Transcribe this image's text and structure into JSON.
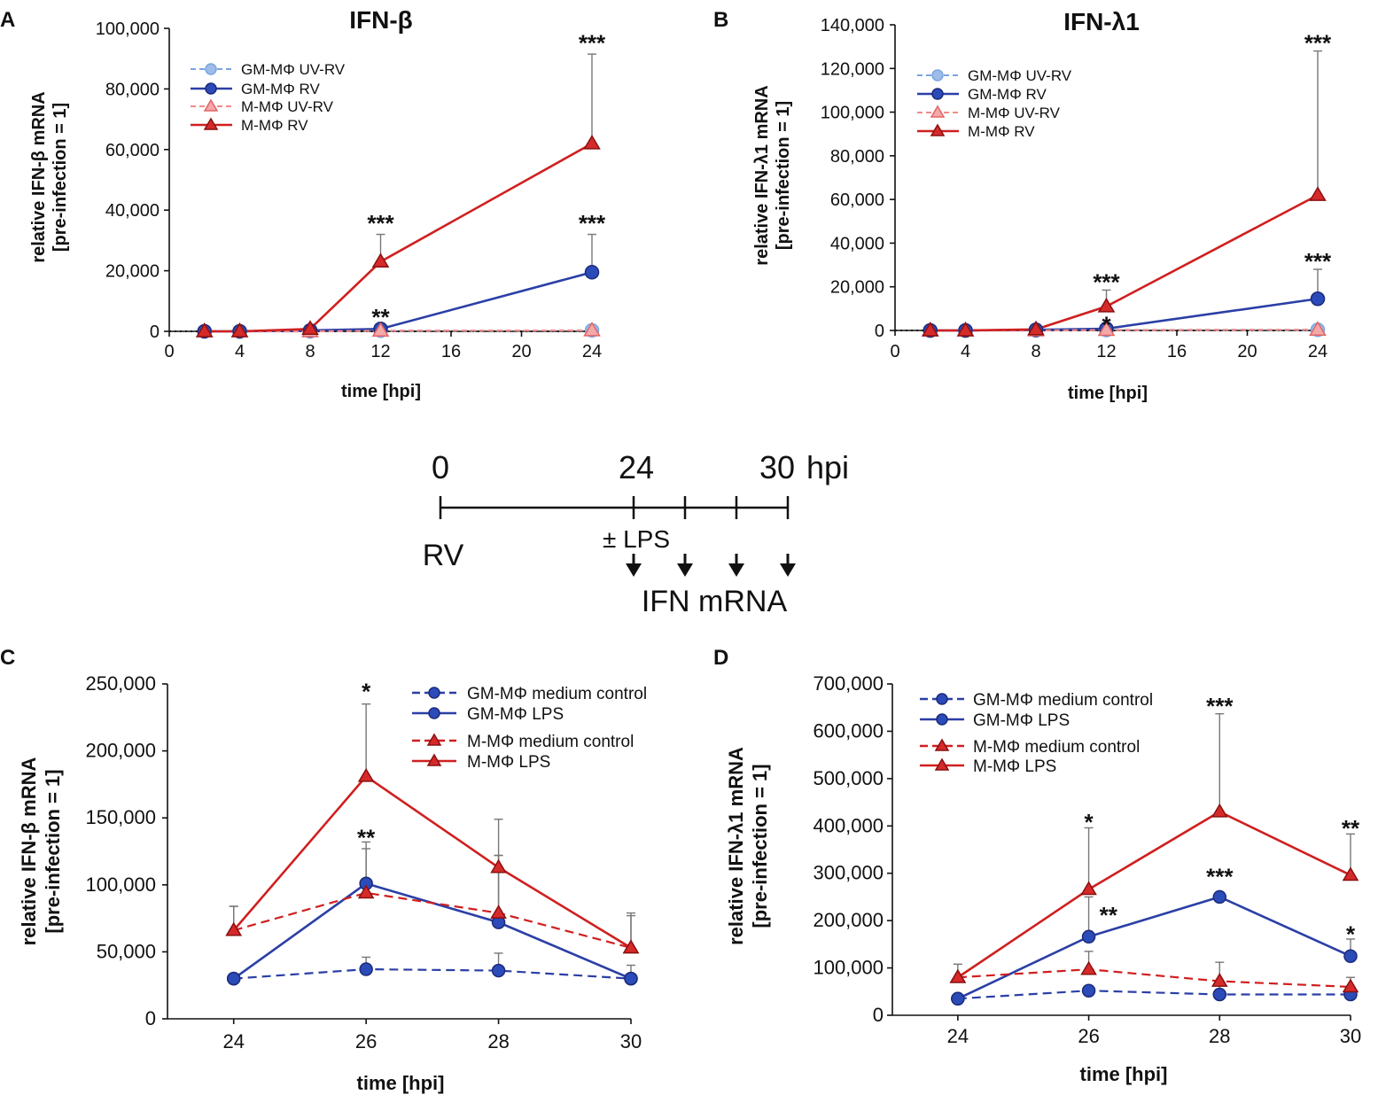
{
  "colors": {
    "gm_uv": "#7aa5e3",
    "gm_rv": "#2b3fa6",
    "m_uv": "#f28a8a",
    "m_rv": "#d01f1f",
    "axis": "#111111",
    "error_bar": "#777777",
    "dotted_baseline": "#111111"
  },
  "timeline": {
    "ticks": [
      "0",
      "24",
      "30"
    ],
    "unit": "hpi",
    "start_label": "RV",
    "treatment_label": "± LPS",
    "readout_label": "IFN mRNA",
    "timepoints": [
      0,
      24,
      26,
      28,
      30
    ],
    "sampling_times": [
      24,
      26,
      28,
      30
    ]
  },
  "chart_data": [
    {
      "id": "A",
      "panel_label": "A",
      "type": "line",
      "title": "IFN-β",
      "xlabel": "time [hpi]",
      "ylabel": [
        "relative IFN-β mRNA",
        "[pre-infection = 1]"
      ],
      "xlim": [
        0,
        24
      ],
      "ylim": [
        0,
        100000
      ],
      "xticks": [
        0,
        4,
        8,
        12,
        16,
        20,
        24
      ],
      "xtick_labels": [
        "0",
        "4",
        "8",
        "12",
        "16",
        "20",
        "24"
      ],
      "yticks": [
        0,
        20000,
        40000,
        60000,
        80000,
        100000
      ],
      "ytick_labels": [
        "0",
        "20,000",
        "40,000",
        "60,000",
        "80,000",
        "100,000"
      ],
      "x": [
        2,
        4,
        8,
        12,
        24
      ],
      "series": [
        {
          "name": "GM-MΦ UV-RV",
          "color": "gm_uv",
          "marker": "circle",
          "dash": "dashed",
          "fill": "light",
          "values": [
            0,
            0,
            0,
            200,
            300
          ],
          "err": [
            0,
            0,
            0,
            0,
            0
          ]
        },
        {
          "name": "GM-MΦ RV",
          "color": "gm_rv",
          "marker": "circle",
          "dash": "solid",
          "fill": "solid",
          "values": [
            0,
            0,
            300,
            800,
            19500
          ],
          "err": [
            0,
            0,
            0,
            0,
            12500
          ]
        },
        {
          "name": "M-MΦ UV-RV",
          "color": "m_uv",
          "marker": "triangle",
          "dash": "dashed",
          "fill": "light",
          "values": [
            0,
            0,
            0,
            200,
            300
          ],
          "err": [
            0,
            0,
            0,
            0,
            0
          ]
        },
        {
          "name": "M-MΦ RV",
          "color": "m_rv",
          "marker": "triangle",
          "dash": "solid",
          "fill": "solid",
          "values": [
            0,
            0,
            800,
            23000,
            62000
          ],
          "err": [
            0,
            0,
            0,
            9000,
            29500
          ]
        }
      ],
      "annotations": [
        {
          "text": "***",
          "x": 12,
          "y": 36000
        },
        {
          "text": "**",
          "x": 12,
          "y": 5000
        },
        {
          "text": "***",
          "x": 24,
          "y": 95500
        },
        {
          "text": "***",
          "x": 24,
          "y": 36000
        }
      ],
      "legend_position": "top-left"
    },
    {
      "id": "B",
      "panel_label": "B",
      "type": "line",
      "title": "IFN-λ1",
      "xlabel": "time [hpi]",
      "ylabel": [
        "relative IFN-λ1 mRNA",
        "[pre-infection = 1]"
      ],
      "xlim": [
        0,
        24
      ],
      "ylim": [
        0,
        140000
      ],
      "xticks": [
        0,
        4,
        8,
        12,
        16,
        20,
        24
      ],
      "xtick_labels": [
        "0",
        "4",
        "8",
        "12",
        "16",
        "20",
        "24"
      ],
      "yticks": [
        0,
        20000,
        40000,
        60000,
        80000,
        100000,
        120000,
        140000
      ],
      "ytick_labels": [
        "0",
        "20,000",
        "40,000",
        "60,000",
        "80,000",
        "100,000",
        "120,000",
        "140,000"
      ],
      "x": [
        2,
        4,
        8,
        12,
        24
      ],
      "series": [
        {
          "name": "GM-MΦ UV-RV",
          "color": "gm_uv",
          "marker": "circle",
          "dash": "dashed",
          "fill": "light",
          "values": [
            0,
            0,
            0,
            200,
            300
          ],
          "err": [
            0,
            0,
            0,
            0,
            0
          ]
        },
        {
          "name": "GM-MΦ RV",
          "color": "gm_rv",
          "marker": "circle",
          "dash": "solid",
          "fill": "solid",
          "values": [
            0,
            0,
            300,
            800,
            14500
          ],
          "err": [
            0,
            0,
            0,
            0,
            13500
          ]
        },
        {
          "name": "M-MΦ UV-RV",
          "color": "m_uv",
          "marker": "triangle",
          "dash": "dashed",
          "fill": "light",
          "values": [
            0,
            0,
            0,
            200,
            300
          ],
          "err": [
            0,
            0,
            0,
            0,
            0
          ]
        },
        {
          "name": "M-MΦ RV",
          "color": "m_rv",
          "marker": "triangle",
          "dash": "solid",
          "fill": "solid",
          "values": [
            0,
            0,
            500,
            11000,
            62000
          ],
          "err": [
            0,
            0,
            0,
            7500,
            66000
          ]
        }
      ],
      "annotations": [
        {
          "text": "***",
          "x": 12,
          "y": 22500
        },
        {
          "text": "*",
          "x": 12,
          "y": 3000
        },
        {
          "text": "***",
          "x": 24,
          "y": 132000
        },
        {
          "text": "***",
          "x": 24,
          "y": 32000
        }
      ],
      "legend_position": "top-left"
    },
    {
      "id": "C",
      "panel_label": "C",
      "type": "line",
      "title": "",
      "xlabel": "time [hpi]",
      "ylabel": [
        "relative IFN-β mRNA",
        "[pre-infection = 1]"
      ],
      "xlim": [
        23,
        30
      ],
      "ylim": [
        0,
        250000
      ],
      "xticks": [
        24,
        26,
        28,
        30
      ],
      "xtick_labels": [
        "24",
        "26",
        "28",
        "30"
      ],
      "yticks": [
        0,
        50000,
        100000,
        150000,
        200000,
        250000
      ],
      "ytick_labels": [
        "0",
        "50,000",
        "100,000",
        "150,000",
        "200,000",
        "250,000"
      ],
      "x": [
        24,
        26,
        28,
        30
      ],
      "series": [
        {
          "name": "GM-MΦ medium control",
          "color": "gm_rv",
          "marker": "circle",
          "dash": "dashed",
          "fill": "solid",
          "values": [
            30000,
            37000,
            36000,
            30000
          ],
          "err": [
            0,
            9000,
            13000,
            0
          ]
        },
        {
          "name": "GM-MΦ LPS",
          "color": "gm_rv",
          "marker": "circle",
          "dash": "solid",
          "fill": "solid",
          "values": [
            30000,
            101000,
            72000,
            30000
          ],
          "err": [
            0,
            31000,
            50000,
            10000
          ]
        },
        {
          "name": "M-MΦ medium control",
          "color": "m_rv",
          "marker": "triangle",
          "dash": "dashed",
          "fill": "solid",
          "values": [
            66000,
            94000,
            79000,
            53000
          ],
          "err": [
            18000,
            33000,
            43000,
            26000
          ]
        },
        {
          "name": "M-MΦ LPS",
          "color": "m_rv",
          "marker": "triangle",
          "dash": "solid",
          "fill": "solid",
          "values": [
            66000,
            181000,
            113000,
            53000
          ],
          "err": [
            18000,
            54000,
            36000,
            24000
          ]
        }
      ],
      "annotations": [
        {
          "text": "*",
          "x": 26,
          "y": 245000
        },
        {
          "text": "**",
          "x": 26,
          "y": 136000
        }
      ],
      "legend_position": "top-right"
    },
    {
      "id": "D",
      "panel_label": "D",
      "type": "line",
      "title": "",
      "xlabel": "time [hpi]",
      "ylabel": [
        "relative IFN-λ1 mRNA",
        "[pre-infection = 1]"
      ],
      "xlim": [
        23,
        30
      ],
      "ylim": [
        0,
        700000
      ],
      "xticks": [
        24,
        26,
        28,
        30
      ],
      "xtick_labels": [
        "24",
        "26",
        "28",
        "30"
      ],
      "yticks": [
        0,
        100000,
        200000,
        300000,
        400000,
        500000,
        600000,
        700000
      ],
      "ytick_labels": [
        "0",
        "100,000",
        "200,000",
        "300,000",
        "400,000",
        "500,000",
        "600,000",
        "700,000"
      ],
      "x": [
        24,
        26,
        28,
        30
      ],
      "series": [
        {
          "name": "GM-MΦ medium control",
          "color": "gm_rv",
          "marker": "circle",
          "dash": "dashed",
          "fill": "solid",
          "values": [
            35000,
            52000,
            44000,
            44000
          ],
          "err": [
            0,
            8000,
            27000,
            0
          ]
        },
        {
          "name": "GM-MΦ LPS",
          "color": "gm_rv",
          "marker": "circle",
          "dash": "solid",
          "fill": "solid",
          "values": [
            35000,
            166000,
            250000,
            125000
          ],
          "err": [
            0,
            84000,
            0,
            36000
          ]
        },
        {
          "name": "M-MΦ medium control",
          "color": "m_rv",
          "marker": "triangle",
          "dash": "dashed",
          "fill": "solid",
          "values": [
            80000,
            97000,
            72000,
            60000
          ],
          "err": [
            0,
            38000,
            40000,
            20000
          ]
        },
        {
          "name": "M-MΦ LPS",
          "color": "m_rv",
          "marker": "triangle",
          "dash": "solid",
          "fill": "solid",
          "values": [
            80000,
            266000,
            430000,
            296000
          ],
          "err": [
            28000,
            130000,
            207000,
            87000
          ]
        }
      ],
      "annotations": [
        {
          "text": "*",
          "x": 26,
          "y": 410000
        },
        {
          "text": "**",
          "x": 26.3,
          "y": 213000
        },
        {
          "text": "***",
          "x": 28,
          "y": 655000
        },
        {
          "text": "***",
          "x": 28,
          "y": 295000
        },
        {
          "text": "**",
          "x": 30,
          "y": 397000
        },
        {
          "text": "*",
          "x": 30,
          "y": 173000
        }
      ],
      "legend_position": "top-left"
    }
  ]
}
